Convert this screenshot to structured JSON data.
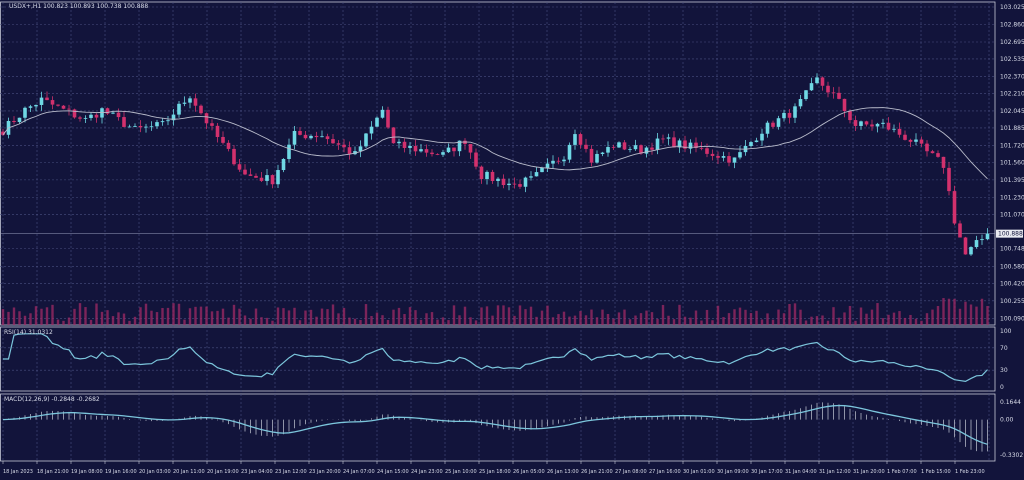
{
  "header": {
    "symbol_timeframe": "USDX+,H1",
    "open": "100.823",
    "high": "100.893",
    "low": "100.738",
    "close": "100.888"
  },
  "colors": {
    "background": "#12143b",
    "grid": "#4a4f80",
    "bull": "#6fd8e4",
    "bear": "#d2316d",
    "ma": "#b9bccb",
    "indicator": "#7cc6dc",
    "volume": "#a02a66"
  },
  "chart_data": [
    {
      "type": "candlestick",
      "title": "USDX+,H1",
      "price_axis_labels": [
        "103.025",
        "102.860",
        "102.695",
        "102.535",
        "102.370",
        "102.210",
        "102.045",
        "101.885",
        "101.720",
        "101.560",
        "101.395",
        "101.230",
        "101.070",
        "100.748",
        "100.580",
        "100.420",
        "100.255",
        "100.090"
      ],
      "current_price_label": "100.888",
      "ylim": [
        100.09,
        103.025
      ],
      "candle_count": 180,
      "close_keypoints": [
        [
          0,
          101.865
        ],
        [
          4,
          102.054
        ],
        [
          7,
          102.148
        ],
        [
          11,
          102.054
        ],
        [
          15,
          101.96
        ],
        [
          18,
          102.054
        ],
        [
          24,
          101.865
        ],
        [
          29,
          101.912
        ],
        [
          34,
          102.195
        ],
        [
          38,
          101.865
        ],
        [
          44,
          101.441
        ],
        [
          49,
          101.394
        ],
        [
          53,
          101.818
        ],
        [
          58,
          101.818
        ],
        [
          64,
          101.63
        ],
        [
          69,
          102.054
        ],
        [
          71,
          101.724
        ],
        [
          76,
          101.677
        ],
        [
          80,
          101.63
        ],
        [
          84,
          101.771
        ],
        [
          87,
          101.441
        ],
        [
          93,
          101.347
        ],
        [
          96,
          101.394
        ],
        [
          102,
          101.63
        ],
        [
          104,
          101.865
        ],
        [
          107,
          101.582
        ],
        [
          111,
          101.724
        ],
        [
          116,
          101.677
        ],
        [
          120,
          101.771
        ],
        [
          127,
          101.677
        ],
        [
          133,
          101.582
        ],
        [
          138,
          101.865
        ],
        [
          144,
          102.054
        ],
        [
          148,
          102.337
        ],
        [
          151,
          102.195
        ],
        [
          155,
          101.912
        ],
        [
          160,
          101.912
        ],
        [
          165,
          101.771
        ],
        [
          171,
          101.535
        ],
        [
          173,
          101.017
        ],
        [
          175,
          100.687
        ],
        [
          179,
          100.888
        ]
      ],
      "moving_average": "SMA"
    },
    {
      "type": "line",
      "title": "RSI(14)",
      "value": "31.0312",
      "axis_labels": [
        "100",
        "70",
        "30",
        "0"
      ],
      "ylim": [
        0,
        100
      ]
    },
    {
      "type": "line+histogram",
      "title": "MACD(12,26,9)",
      "main": "-0.2848",
      "signal": "-0.2682",
      "axis_labels": [
        "0.1644",
        "0.00",
        "-0.3302"
      ],
      "ylim": [
        -0.3302,
        0.1644
      ]
    }
  ],
  "time_axis": [
    "18 Jan 2023",
    "18 Jan 21:00",
    "19 Jan 08:00",
    "19 Jan 16:00",
    "20 Jan 03:00",
    "20 Jan 11:00",
    "20 Jan 19:00",
    "23 Jan 04:00",
    "23 Jan 12:00",
    "23 Jan 20:00",
    "24 Jan 07:00",
    "24 Jan 15:00",
    "24 Jan 23:00",
    "25 Jan 10:00",
    "25 Jan 18:00",
    "26 Jan 05:00",
    "26 Jan 13:00",
    "26 Jan 21:00",
    "27 Jan 08:00",
    "27 Jan 16:00",
    "30 Jan 01:00",
    "30 Jan 09:00",
    "30 Jan 17:00",
    "31 Jan 04:00",
    "31 Jan 12:00",
    "31 Jan 20:00",
    "1 Feb 07:00",
    "1 Feb 15:00",
    "1 Feb 23:00"
  ]
}
